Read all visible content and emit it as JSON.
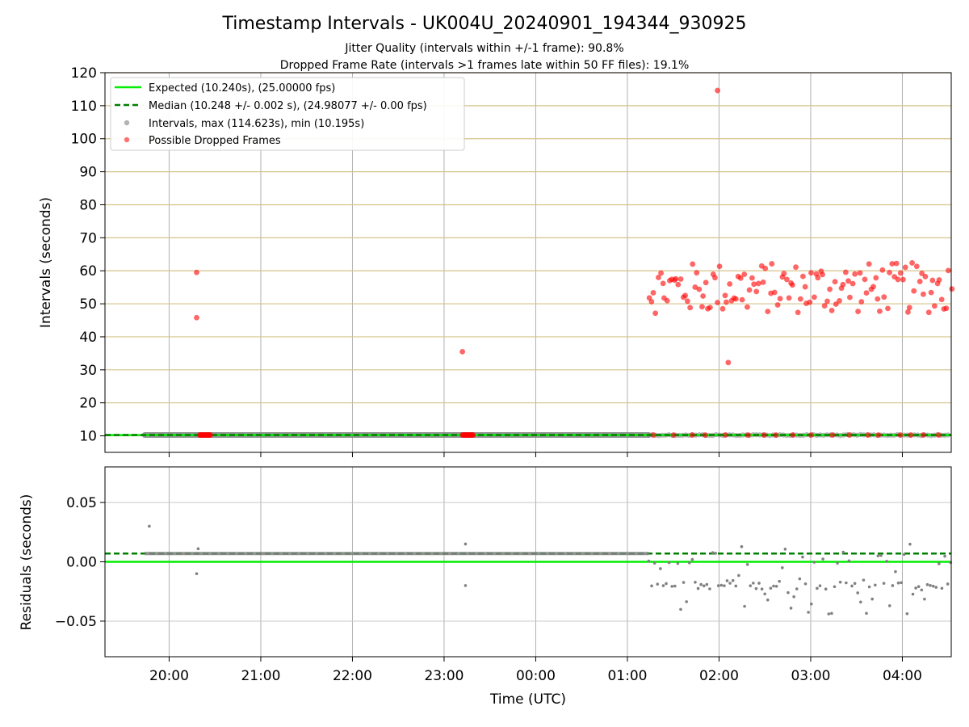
{
  "chart_data": {
    "type": "scatter",
    "title": "Timestamp Intervals - UK004U_20240901_194344_930925",
    "subtitles": [
      "Jitter Quality (intervals within +/-1 frame): 90.8%",
      "Dropped Frame Rate (intervals >1 frames late within 50 FF files): 19.1%"
    ],
    "xlabel": "Time (UTC)",
    "x_range": [
      "19:18",
      "04:32"
    ],
    "x_ticks": [
      "20:00",
      "21:00",
      "22:00",
      "23:00",
      "00:00",
      "01:00",
      "02:00",
      "03:00",
      "04:00"
    ],
    "panels": [
      {
        "name": "intervals",
        "ylabel": "Intervals (seconds)",
        "ylim": [
          5,
          120
        ],
        "y_ticks": [
          10,
          20,
          30,
          40,
          50,
          60,
          70,
          80,
          90,
          100,
          110,
          120
        ],
        "horizontal_grid_color": "#d4c38a",
        "vertical_grid": true,
        "legend_position": "top-left",
        "legend": [
          "Expected (10.240s), (25.00000 fps)",
          "Median (10.248 +/- 0.002 s), (24.98077 +/- 0.00 fps)",
          "Intervals, max (114.623s), min (10.195s)",
          "Possible Dropped Frames"
        ],
        "series": [
          {
            "name": "Expected (10.240s), (25.00000 fps)",
            "kind": "hline",
            "y": 10.24,
            "color": "#00ee00",
            "style": "solid"
          },
          {
            "name": "Median (10.248 +/- 0.002 s), (24.98077 +/- 0.00 fps)",
            "kind": "hline",
            "y": 10.248,
            "color": "#008000",
            "style": "dashed"
          },
          {
            "name": "Intervals, max (114.623s), min (10.195s)",
            "kind": "scatter",
            "color": "#808080",
            "dense_band": {
              "x_start": "19:44",
              "x_end": "01:14",
              "y": 10.248
            },
            "sparse_range": {
              "x_start": "01:14",
              "x_end": "04:32",
              "y": 10.24
            }
          },
          {
            "name": "Possible Dropped Frames",
            "kind": "scatter",
            "color": "#ff0000",
            "points": [
              {
                "x": "20:18",
                "y": 59.5
              },
              {
                "x": "20:18",
                "y": 45.8
              },
              {
                "x": "23:12",
                "y": 35.5
              },
              {
                "x": "01:59",
                "y": 114.6
              },
              {
                "x": "02:06",
                "y": 32.2
              }
            ],
            "clusters_at_10": [
              [
                "20:20",
                "20:27"
              ],
              [
                "23:12",
                "23:19"
              ]
            ],
            "cloud": {
              "x_start": "01:14",
              "x_end": "04:32",
              "y_min": 45,
              "y_max": 64.5
            }
          }
        ]
      },
      {
        "name": "residuals",
        "ylabel": "Residuals (seconds)",
        "ylim": [
          -0.08,
          0.08
        ],
        "y_ticks": [
          0.05,
          0.0,
          -0.05
        ],
        "y_tick_labels": [
          "0.05",
          "0.00",
          "−0.05"
        ],
        "series": [
          {
            "name": "Expected",
            "kind": "hline",
            "y": 0.0,
            "color": "#00ee00",
            "style": "solid"
          },
          {
            "name": "Median",
            "kind": "hline",
            "y": 0.007,
            "color": "#008000",
            "style": "dashed"
          },
          {
            "name": "Residuals",
            "kind": "scatter",
            "color": "#808080",
            "dense_band": {
              "x_start": "19:44",
              "x_end": "01:14",
              "y": 0.007
            },
            "points": [
              {
                "x": "19:47",
                "y": 0.03
              },
              {
                "x": "20:18",
                "y": -0.01
              },
              {
                "x": "20:19",
                "y": 0.011
              },
              {
                "x": "23:14",
                "y": 0.015
              },
              {
                "x": "23:14",
                "y": -0.02
              }
            ],
            "sparse_range": {
              "x_start": "01:14",
              "x_end": "04:32",
              "y_min": -0.045,
              "y_max": 0.015
            }
          }
        ]
      }
    ]
  }
}
